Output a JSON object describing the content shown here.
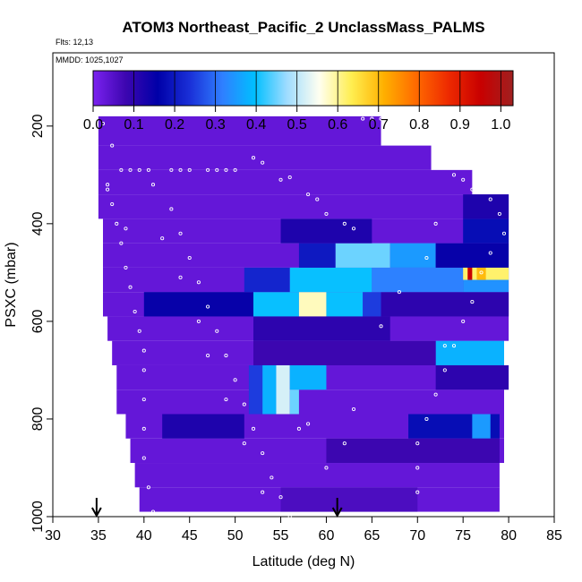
{
  "chart_data": {
    "type": "heatmap",
    "title": "ATOM3 Northeast_Pacific_2 UnclassMass_PALMS",
    "flights_label": "Flts: 12,13",
    "dates_label": "MMDD: 1025,1027",
    "xlabel": "Latitude (deg N)",
    "ylabel": "PSXC (mbar)",
    "xlim": [
      30,
      85
    ],
    "ylim": [
      1000,
      50
    ],
    "y_inverted": true,
    "x_ticks": [
      "30",
      "35",
      "40",
      "45",
      "50",
      "55",
      "60",
      "65",
      "70",
      "75",
      "80",
      "85"
    ],
    "y_ticks": [
      "200",
      "400",
      "600",
      "800",
      "1000"
    ],
    "colorbar": {
      "range": [
        0.0,
        1.03
      ],
      "tick_labels": [
        "0.0",
        "0.1",
        "0.2",
        "0.3",
        "0.4",
        "0.5",
        "0.6",
        "0.7",
        "0.8",
        "0.9",
        "1.0"
      ],
      "colors": [
        "#7b22f0",
        "#3d06b0",
        "#0000a8",
        "#1a30d8",
        "#2f7fff",
        "#00bfff",
        "#9fdcff",
        "#fffff0",
        "#ffee50",
        "#ffb000",
        "#ff6a00",
        "#ee2a00",
        "#c80000",
        "#a02020"
      ]
    },
    "pressure_bins": [
      180,
      240,
      290,
      340,
      390,
      440,
      490,
      540,
      590,
      640,
      690,
      740,
      790,
      840,
      890,
      940,
      990
    ],
    "row_lat_start": [
      35,
      35,
      35,
      35,
      35.5,
      35.5,
      35.5,
      35.5,
      36,
      36.5,
      37,
      37,
      38,
      38.5,
      39,
      39.5,
      40
    ],
    "row_lat_end": [
      66,
      71.5,
      76,
      80,
      80,
      80,
      80,
      80,
      80,
      79.5,
      79.5,
      79.5,
      79.5,
      79.5,
      79,
      79,
      79
    ],
    "background_value": 0.03,
    "features": [
      {
        "lat": [
          40,
          52
        ],
        "p": [
          540,
          590
        ],
        "v": 0.15
      },
      {
        "lat": [
          52,
          57
        ],
        "p": [
          540,
          590
        ],
        "v": 0.4
      },
      {
        "lat": [
          57,
          60
        ],
        "p": [
          540,
          590
        ],
        "v": 0.58
      },
      {
        "lat": [
          60,
          64
        ],
        "p": [
          540,
          590
        ],
        "v": 0.4
      },
      {
        "lat": [
          64,
          66
        ],
        "p": [
          540,
          590
        ],
        "v": 0.25
      },
      {
        "lat": [
          66,
          80
        ],
        "p": [
          540,
          590
        ],
        "v": 0.1
      },
      {
        "lat": [
          51,
          56
        ],
        "p": [
          490,
          540
        ],
        "v": 0.22
      },
      {
        "lat": [
          56,
          65
        ],
        "p": [
          490,
          540
        ],
        "v": 0.4
      },
      {
        "lat": [
          65,
          75
        ],
        "p": [
          490,
          540
        ],
        "v": 0.32
      },
      {
        "lat": [
          75,
          80
        ],
        "p": [
          490,
          540
        ],
        "v": 0.34
      },
      {
        "lat": [
          75,
          80
        ],
        "p": [
          465,
          515
        ],
        "v": 0.62
      },
      {
        "lat": [
          75.5,
          76
        ],
        "p": [
          465,
          515
        ],
        "v": 0.95
      },
      {
        "lat": [
          76.5,
          77.5
        ],
        "p": [
          465,
          515
        ],
        "v": 0.7
      },
      {
        "lat": [
          61,
          67
        ],
        "p": [
          440,
          490
        ],
        "v": 0.45
      },
      {
        "lat": [
          57,
          61
        ],
        "p": [
          440,
          490
        ],
        "v": 0.2
      },
      {
        "lat": [
          67,
          72
        ],
        "p": [
          440,
          490
        ],
        "v": 0.35
      },
      {
        "lat": [
          72,
          80
        ],
        "p": [
          440,
          490
        ],
        "v": 0.15
      },
      {
        "lat": [
          55,
          65
        ],
        "p": [
          390,
          440
        ],
        "v": 0.12
      },
      {
        "lat": [
          75,
          80
        ],
        "p": [
          390,
          440
        ],
        "v": 0.18
      },
      {
        "lat": [
          75,
          80
        ],
        "p": [
          340,
          390
        ],
        "v": 0.12
      },
      {
        "lat": [
          52,
          67
        ],
        "p": [
          590,
          640
        ],
        "v": 0.1
      },
      {
        "lat": [
          72,
          79.5
        ],
        "p": [
          640,
          690
        ],
        "v": 0.38
      },
      {
        "lat": [
          52,
          72
        ],
        "p": [
          640,
          690
        ],
        "v": 0.08
      },
      {
        "lat": [
          51.5,
          53
        ],
        "p": [
          690,
          790
        ],
        "v": 0.25
      },
      {
        "lat": [
          53,
          54.5
        ],
        "p": [
          690,
          790
        ],
        "v": 0.38
      },
      {
        "lat": [
          54.5,
          56
        ],
        "p": [
          690,
          790
        ],
        "v": 0.52
      },
      {
        "lat": [
          56,
          60
        ],
        "p": [
          690,
          740
        ],
        "v": 0.38
      },
      {
        "lat": [
          56,
          57
        ],
        "p": [
          740,
          790
        ],
        "v": 0.45
      },
      {
        "lat": [
          72,
          80
        ],
        "p": [
          690,
          740
        ],
        "v": 0.1
      },
      {
        "lat": [
          42,
          51
        ],
        "p": [
          790,
          840
        ],
        "v": 0.12
      },
      {
        "lat": [
          69,
          79
        ],
        "p": [
          790,
          840
        ],
        "v": 0.18
      },
      {
        "lat": [
          76,
          78
        ],
        "p": [
          790,
          840
        ],
        "v": 0.35
      },
      {
        "lat": [
          60,
          79
        ],
        "p": [
          840,
          890
        ],
        "v": 0.08
      },
      {
        "lat": [
          55,
          70
        ],
        "p": [
          940,
          990
        ],
        "v": 0.06
      }
    ],
    "flight_track": [
      [
        34.5,
        195
      ],
      [
        35.5,
        195
      ],
      [
        36.5,
        240
      ],
      [
        37.5,
        290
      ],
      [
        38.5,
        290
      ],
      [
        39.5,
        290
      ],
      [
        40.5,
        290
      ],
      [
        43,
        290
      ],
      [
        44,
        290
      ],
      [
        45,
        290
      ],
      [
        47,
        290
      ],
      [
        48,
        290
      ],
      [
        49,
        290
      ],
      [
        50,
        290
      ],
      [
        52,
        265
      ],
      [
        53,
        275
      ],
      [
        55,
        310
      ],
      [
        56,
        305
      ],
      [
        58,
        340
      ],
      [
        59,
        350
      ],
      [
        60,
        380
      ],
      [
        62,
        400
      ],
      [
        63,
        410
      ],
      [
        64,
        185
      ],
      [
        65,
        185
      ],
      [
        66,
        185
      ],
      [
        67,
        190
      ],
      [
        68,
        200
      ],
      [
        69,
        220
      ],
      [
        70,
        225
      ],
      [
        71,
        230
      ],
      [
        72,
        265
      ],
      [
        73,
        275
      ],
      [
        74,
        300
      ],
      [
        75,
        310
      ],
      [
        76,
        330
      ],
      [
        77,
        320
      ],
      [
        78,
        350
      ],
      [
        79,
        380
      ],
      [
        79.5,
        420
      ],
      [
        78,
        460
      ],
      [
        77,
        500
      ],
      [
        76,
        560
      ],
      [
        75,
        600
      ],
      [
        74,
        650
      ],
      [
        73,
        700
      ],
      [
        72,
        750
      ],
      [
        71,
        800
      ],
      [
        70,
        850
      ],
      [
        70,
        900
      ],
      [
        70,
        950
      ],
      [
        73,
        650
      ],
      [
        36,
        320
      ],
      [
        36.5,
        360
      ],
      [
        37,
        400
      ],
      [
        37.5,
        440
      ],
      [
        38,
        490
      ],
      [
        38.5,
        530
      ],
      [
        39,
        580
      ],
      [
        39.5,
        620
      ],
      [
        40,
        660
      ],
      [
        40,
        700
      ],
      [
        40,
        760
      ],
      [
        40,
        820
      ],
      [
        40,
        880
      ],
      [
        40.5,
        940
      ],
      [
        41,
        990
      ],
      [
        43,
        370
      ],
      [
        44,
        420
      ],
      [
        45,
        470
      ],
      [
        46,
        520
      ],
      [
        47,
        570
      ],
      [
        48,
        620
      ],
      [
        49,
        670
      ],
      [
        50,
        720
      ],
      [
        51,
        770
      ],
      [
        52,
        820
      ],
      [
        53,
        870
      ],
      [
        54,
        920
      ],
      [
        55,
        960
      ],
      [
        56,
        1000
      ],
      [
        60,
        900
      ],
      [
        62,
        850
      ],
      [
        63,
        780
      ],
      [
        66,
        610
      ],
      [
        68,
        540
      ],
      [
        71,
        470
      ],
      [
        72,
        400
      ],
      [
        57,
        820
      ],
      [
        58,
        810
      ],
      [
        36,
        330
      ],
      [
        38,
        410
      ],
      [
        41,
        320
      ],
      [
        42,
        430
      ],
      [
        44,
        510
      ],
      [
        46,
        600
      ],
      [
        47,
        670
      ],
      [
        49,
        760
      ],
      [
        51,
        850
      ],
      [
        53,
        950
      ]
    ],
    "arrows_lat": [
      34.8,
      61.2
    ]
  }
}
